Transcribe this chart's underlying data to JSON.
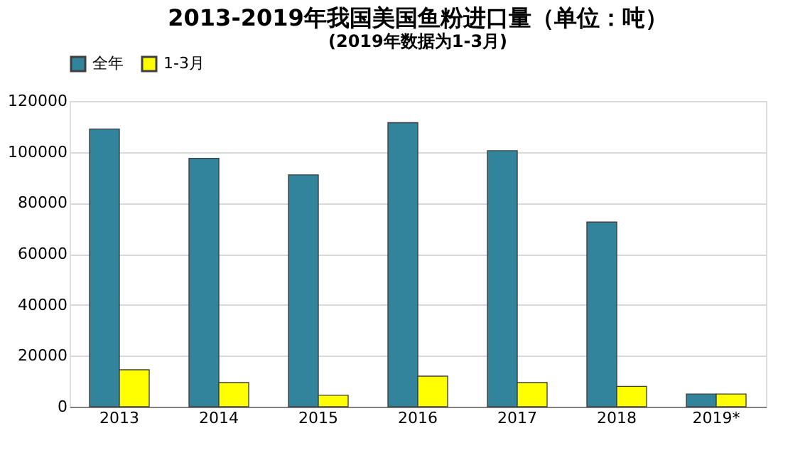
{
  "chart_data": {
    "type": "bar",
    "title": "2013-2019年我国美国鱼粉进口量（单位：吨）",
    "subtitle": "(2019年数据为1-3月)",
    "categories": [
      "2013",
      "2014",
      "2015",
      "2016",
      "2017",
      "2018",
      "2019*"
    ],
    "series": [
      {
        "name": "全年",
        "color": "#31849b",
        "values": [
          109000,
          97500,
          91000,
          111500,
          100500,
          72500,
          5000
        ]
      },
      {
        "name": "1-3月",
        "color": "#ffff00",
        "values": [
          14500,
          9500,
          4500,
          12000,
          9500,
          8000,
          5000
        ]
      }
    ],
    "ylim": [
      0,
      120000
    ],
    "yticks": [
      0,
      20000,
      40000,
      60000,
      80000,
      100000,
      120000
    ],
    "grid": "y",
    "legend": "top"
  }
}
